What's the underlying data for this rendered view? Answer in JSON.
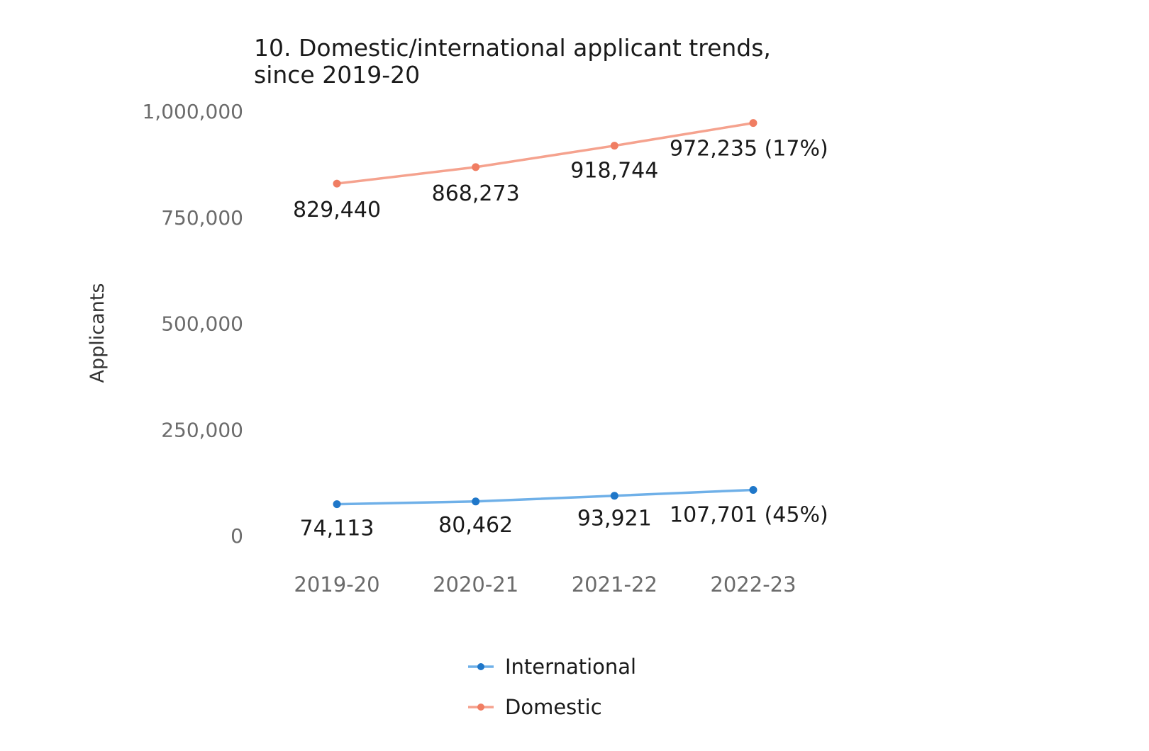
{
  "chart_data": {
    "type": "line",
    "title_lines": [
      "10. Domestic/international applicant trends,",
      "since 2019-20"
    ],
    "xlabel": "",
    "ylabel": "Applicants",
    "categories": [
      "2019-20",
      "2020-21",
      "2021-22",
      "2022-23"
    ],
    "ylim": [
      0,
      1000000
    ],
    "yticks": [
      0,
      250000,
      500000,
      750000,
      1000000
    ],
    "ytick_labels": [
      "0",
      "250,000",
      "500,000",
      "750,000",
      "1,000,000"
    ],
    "grid": false,
    "legend_position": "bottom",
    "series": [
      {
        "name": "International",
        "color": "#1f77c9",
        "line_color": "#6fb0e8",
        "values": [
          74113,
          80462,
          93921,
          107701
        ],
        "labels": [
          "74,113",
          "80,462",
          "93,921",
          "107,701 (45%)"
        ]
      },
      {
        "name": "Domestic",
        "color": "#f07d62",
        "line_color": "#f5a28e",
        "values": [
          829440,
          868273,
          918744,
          972235
        ],
        "labels": [
          "829,440",
          "868,273",
          "918,744",
          "972,235 (17%)"
        ]
      }
    ]
  }
}
